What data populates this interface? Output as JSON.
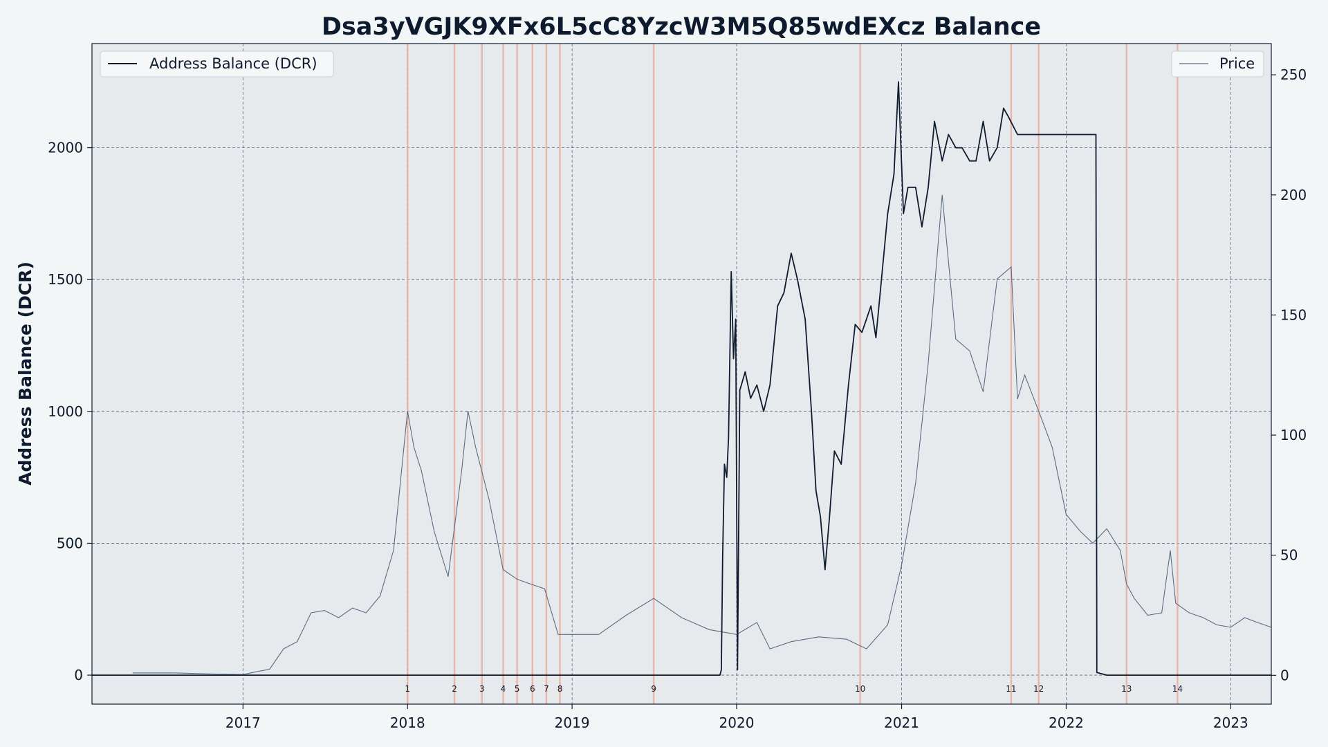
{
  "chart_data": {
    "type": "line",
    "title": "Dsa3yVGJK9XFx6L5cC8YzcW3M5Q85wdEXcz Balance",
    "ylabel": "Address Balance (DCR)",
    "y2label": "",
    "xlim": [
      "2016-02-01",
      "2023-04-01"
    ],
    "ylim": [
      -110,
      2395
    ],
    "y2lim": [
      -12,
      263
    ],
    "x_ticks": [
      "2017",
      "2018",
      "2019",
      "2020",
      "2021",
      "2022",
      "2023"
    ],
    "y_ticks": [
      0,
      500,
      1000,
      1500,
      2000
    ],
    "y2_ticks": [
      0,
      50,
      100,
      150,
      200,
      250
    ],
    "grid": true,
    "legend": [
      {
        "label": "Address Balance (DCR)",
        "position": "top-left"
      },
      {
        "label": "Price",
        "position": "top-right"
      }
    ],
    "colors": {
      "balance": "#0e1a2e",
      "price": "#5a6b80",
      "event_line": "#e8b0a3",
      "plot_bg": "#e7eaed",
      "grid": "#5a6680"
    },
    "series": [
      {
        "name": "Address Balance (DCR)",
        "axis": "left",
        "points": [
          [
            "2016-02-01",
            0
          ],
          [
            "2019-11-25",
            0
          ],
          [
            "2019-11-28",
            20
          ],
          [
            "2019-12-01",
            450
          ],
          [
            "2019-12-05",
            800
          ],
          [
            "2019-12-10",
            750
          ],
          [
            "2019-12-14",
            900
          ],
          [
            "2019-12-20",
            1530
          ],
          [
            "2019-12-25",
            1200
          ],
          [
            "2019-12-30",
            1350
          ],
          [
            "2020-01-03",
            20
          ],
          [
            "2020-01-08",
            1080
          ],
          [
            "2020-01-20",
            1150
          ],
          [
            "2020-02-01",
            1050
          ],
          [
            "2020-02-15",
            1100
          ],
          [
            "2020-03-01",
            1000
          ],
          [
            "2020-03-15",
            1100
          ],
          [
            "2020-04-01",
            1400
          ],
          [
            "2020-04-15",
            1450
          ],
          [
            "2020-05-01",
            1600
          ],
          [
            "2020-05-15",
            1500
          ],
          [
            "2020-06-01",
            1350
          ],
          [
            "2020-06-15",
            1000
          ],
          [
            "2020-06-25",
            700
          ],
          [
            "2020-07-05",
            600
          ],
          [
            "2020-07-15",
            400
          ],
          [
            "2020-07-25",
            600
          ],
          [
            "2020-08-05",
            850
          ],
          [
            "2020-08-20",
            800
          ],
          [
            "2020-09-05",
            1100
          ],
          [
            "2020-09-20",
            1330
          ],
          [
            "2020-10-05",
            1300
          ],
          [
            "2020-10-15",
            1350
          ],
          [
            "2020-10-25",
            1400
          ],
          [
            "2020-11-05",
            1280
          ],
          [
            "2020-11-20",
            1550
          ],
          [
            "2020-12-01",
            1750
          ],
          [
            "2020-12-15",
            1900
          ],
          [
            "2020-12-25",
            2250
          ],
          [
            "2021-01-05",
            1750
          ],
          [
            "2021-01-15",
            1850
          ],
          [
            "2021-02-01",
            1850
          ],
          [
            "2021-02-15",
            1700
          ],
          [
            "2021-03-01",
            1850
          ],
          [
            "2021-03-15",
            2100
          ],
          [
            "2021-04-01",
            1950
          ],
          [
            "2021-04-15",
            2050
          ],
          [
            "2021-05-01",
            2000
          ],
          [
            "2021-05-15",
            2000
          ],
          [
            "2021-06-01",
            1950
          ],
          [
            "2021-06-15",
            1950
          ],
          [
            "2021-07-01",
            2100
          ],
          [
            "2021-07-15",
            1950
          ],
          [
            "2021-08-01",
            2000
          ],
          [
            "2021-08-15",
            2150
          ],
          [
            "2021-08-25",
            2120
          ],
          [
            "2021-09-15",
            2050
          ],
          [
            "2022-03-08",
            2050
          ],
          [
            "2022-03-10",
            10
          ],
          [
            "2022-04-01",
            0
          ],
          [
            "2023-04-01",
            0
          ]
        ]
      },
      {
        "name": "Price",
        "axis": "right",
        "points": [
          [
            "2016-05-01",
            1
          ],
          [
            "2016-08-01",
            1
          ],
          [
            "2016-11-01",
            0.5
          ],
          [
            "2017-01-01",
            0.3
          ],
          [
            "2017-02-01",
            1.5
          ],
          [
            "2017-03-01",
            2.5
          ],
          [
            "2017-04-01",
            11
          ],
          [
            "2017-05-01",
            14
          ],
          [
            "2017-06-01",
            26
          ],
          [
            "2017-07-01",
            27
          ],
          [
            "2017-08-01",
            24
          ],
          [
            "2017-09-01",
            28
          ],
          [
            "2017-10-01",
            26
          ],
          [
            "2017-11-01",
            33
          ],
          [
            "2017-12-01",
            52
          ],
          [
            "2018-01-01",
            110
          ],
          [
            "2018-01-15",
            95
          ],
          [
            "2018-02-01",
            85
          ],
          [
            "2018-03-01",
            60
          ],
          [
            "2018-04-01",
            41
          ],
          [
            "2018-05-01",
            85
          ],
          [
            "2018-05-15",
            110
          ],
          [
            "2018-06-01",
            95
          ],
          [
            "2018-07-01",
            73
          ],
          [
            "2018-08-01",
            44
          ],
          [
            "2018-09-01",
            40
          ],
          [
            "2018-10-01",
            38
          ],
          [
            "2018-11-01",
            36
          ],
          [
            "2018-12-01",
            17
          ],
          [
            "2019-01-01",
            17
          ],
          [
            "2019-03-01",
            17
          ],
          [
            "2019-05-01",
            25
          ],
          [
            "2019-07-01",
            32
          ],
          [
            "2019-09-01",
            24
          ],
          [
            "2019-11-01",
            19
          ],
          [
            "2020-01-01",
            17
          ],
          [
            "2020-02-15",
            22
          ],
          [
            "2020-03-15",
            11
          ],
          [
            "2020-05-01",
            14
          ],
          [
            "2020-07-01",
            16
          ],
          [
            "2020-09-01",
            15
          ],
          [
            "2020-10-15",
            11
          ],
          [
            "2020-12-01",
            21
          ],
          [
            "2021-01-01",
            46
          ],
          [
            "2021-02-01",
            80
          ],
          [
            "2021-03-01",
            130
          ],
          [
            "2021-04-01",
            200
          ],
          [
            "2021-05-01",
            140
          ],
          [
            "2021-06-01",
            135
          ],
          [
            "2021-07-01",
            118
          ],
          [
            "2021-08-01",
            165
          ],
          [
            "2021-09-01",
            170
          ],
          [
            "2021-09-15",
            115
          ],
          [
            "2021-10-01",
            125
          ],
          [
            "2021-11-01",
            110
          ],
          [
            "2021-12-01",
            95
          ],
          [
            "2022-01-01",
            67
          ],
          [
            "2022-02-01",
            60
          ],
          [
            "2022-03-01",
            55
          ],
          [
            "2022-04-01",
            61
          ],
          [
            "2022-05-01",
            52
          ],
          [
            "2022-05-15",
            38
          ],
          [
            "2022-06-01",
            32
          ],
          [
            "2022-07-01",
            25
          ],
          [
            "2022-08-01",
            26
          ],
          [
            "2022-08-20",
            52
          ],
          [
            "2022-09-01",
            30
          ],
          [
            "2022-10-01",
            26
          ],
          [
            "2022-11-01",
            24
          ],
          [
            "2022-12-01",
            21
          ],
          [
            "2023-01-01",
            20
          ],
          [
            "2023-02-01",
            24
          ],
          [
            "2023-03-01",
            22
          ],
          [
            "2023-04-01",
            20
          ]
        ]
      }
    ],
    "events": [
      {
        "label": "1",
        "date": "2018-01-01"
      },
      {
        "label": "2",
        "date": "2018-04-15"
      },
      {
        "label": "3",
        "date": "2018-06-15"
      },
      {
        "label": "4",
        "date": "2018-08-01"
      },
      {
        "label": "5",
        "date": "2018-09-01"
      },
      {
        "label": "6",
        "date": "2018-10-05"
      },
      {
        "label": "7",
        "date": "2018-11-05"
      },
      {
        "label": "8",
        "date": "2018-12-05"
      },
      {
        "label": "9",
        "date": "2019-07-01"
      },
      {
        "label": "10",
        "date": "2020-10-01"
      },
      {
        "label": "11",
        "date": "2021-09-01"
      },
      {
        "label": "12",
        "date": "2021-11-01"
      },
      {
        "label": "13",
        "date": "2022-05-15"
      },
      {
        "label": "14",
        "date": "2022-09-05"
      }
    ]
  }
}
